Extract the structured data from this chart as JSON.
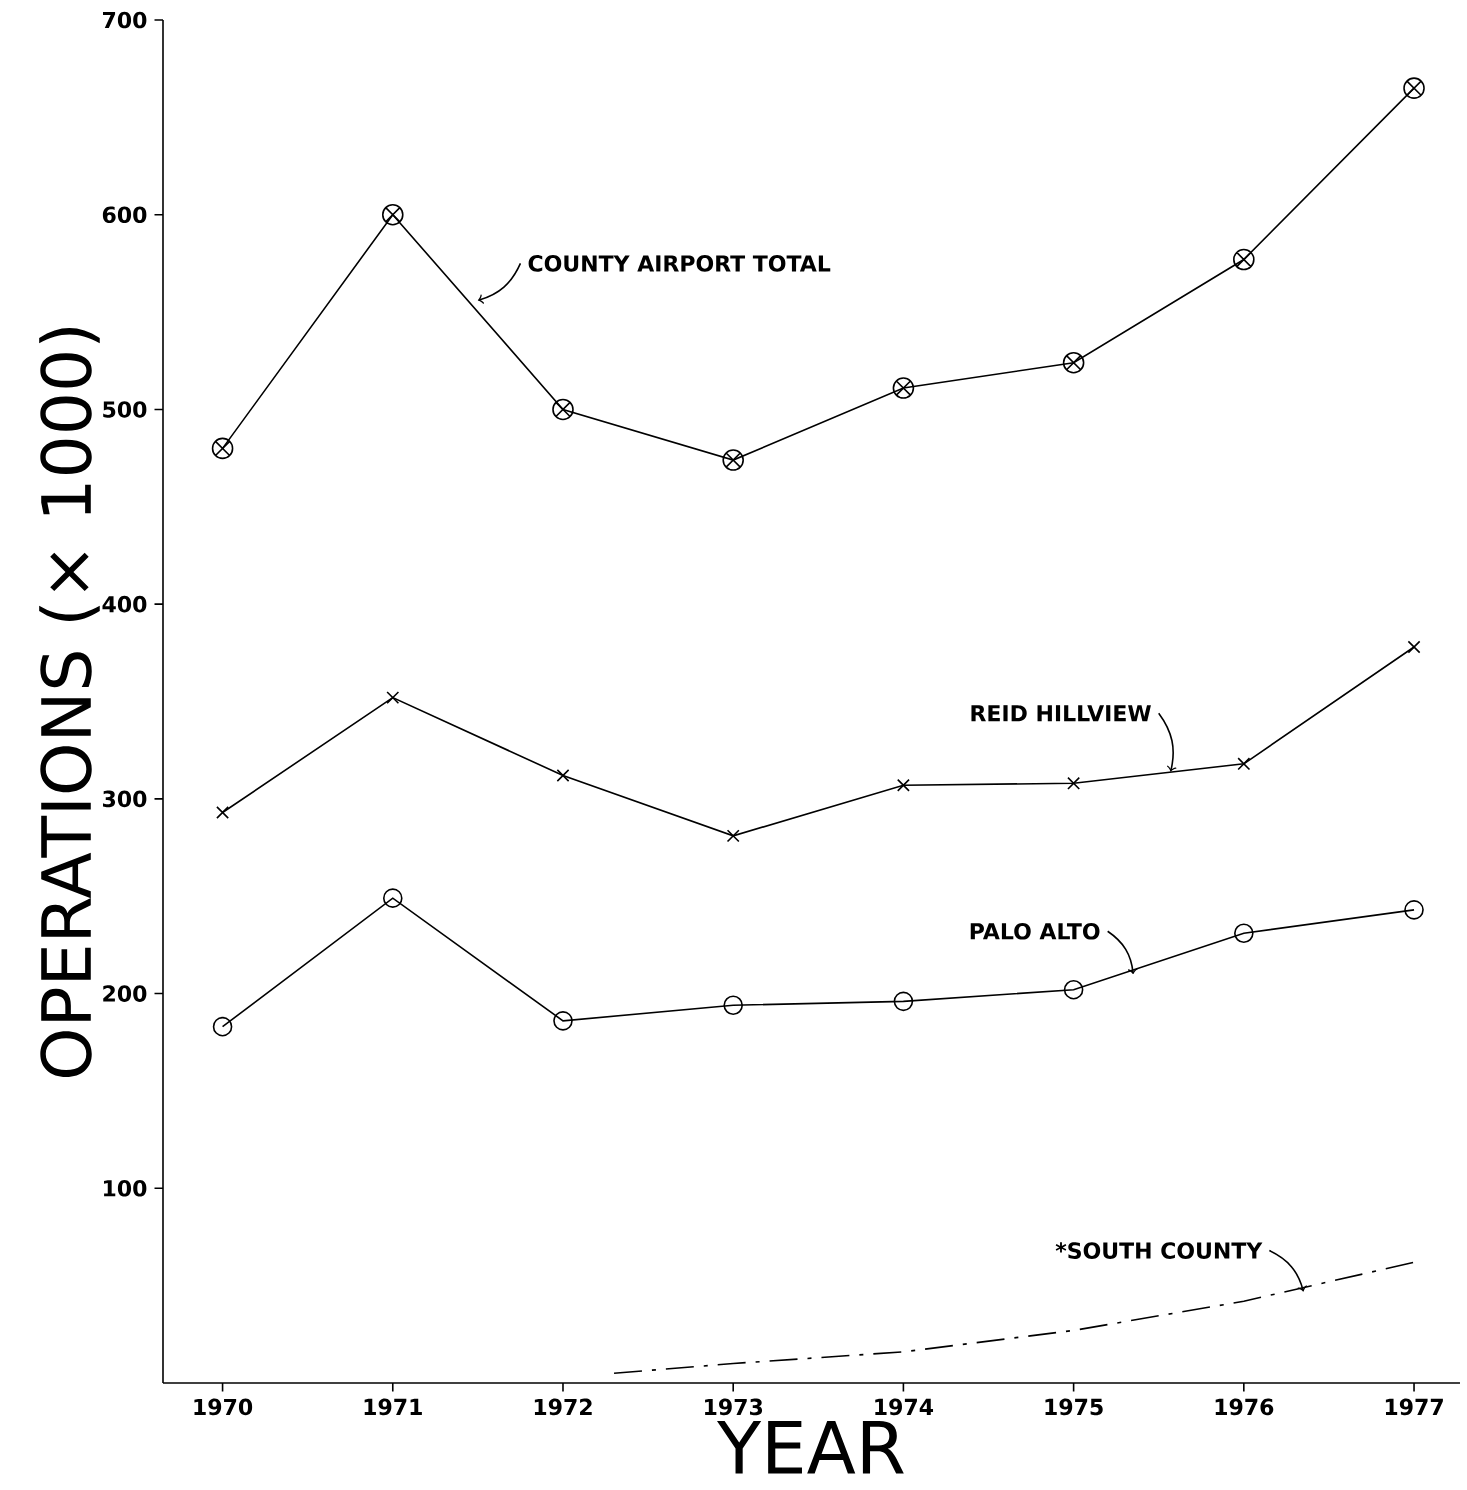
{
  "chart_data": {
    "type": "line",
    "xlabel": "YEAR",
    "ylabel": "OPERATIONS (× 1000)",
    "x": [
      1970,
      1971,
      1972,
      1973,
      1974,
      1975,
      1976,
      1977
    ],
    "xlim": [
      1969.65,
      1977.27
    ],
    "xticks": [
      1970,
      1971,
      1972,
      1973,
      1974,
      1975,
      1976,
      1977
    ],
    "ylim": [
      0,
      700
    ],
    "yticks": [
      100,
      200,
      300,
      400,
      500,
      600,
      700
    ],
    "grid": false,
    "series": [
      {
        "name": "COUNTY AIRPORT TOTAL",
        "color": "#000000",
        "marker": "cross",
        "line_style": "solid",
        "values": [
          480,
          600,
          500,
          474,
          511,
          524,
          577,
          665
        ]
      },
      {
        "name": "REID HILLVIEW",
        "color": "#000000",
        "marker": "cross",
        "line_style": "solid",
        "values": [
          293,
          352,
          312,
          281,
          307,
          308,
          318,
          378
        ]
      },
      {
        "name": "PALO ALTO",
        "color": "#000000",
        "marker": "circle",
        "line_style": "solid",
        "values": [
          183,
          249,
          186,
          194,
          196,
          202,
          231,
          243
        ]
      },
      {
        "name": "*SOUTH COUNTY",
        "color": "#000000",
        "marker": "none",
        "line_style": "dashdot",
        "x": [
          1972.3,
          1973,
          1974,
          1975,
          1976,
          1977
        ],
        "values": [
          5,
          10,
          16,
          27,
          42,
          62
        ]
      }
    ]
  }
}
